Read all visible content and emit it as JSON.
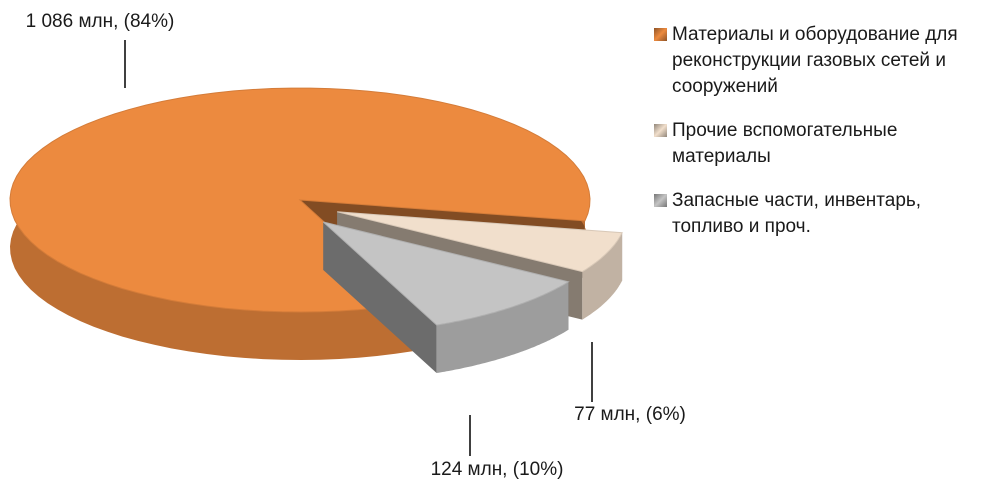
{
  "chart_data": {
    "type": "pie",
    "categories": [
      "Материалы и оборудование для реконструкции газовых сетей и сооружений",
      "Прочие вспомогательные материалы",
      "Запасные части, инвентарь, топливо и проч."
    ],
    "values": [
      1086,
      77,
      124
    ],
    "value_labels": [
      "1 086 млн,  (84%)",
      "77 млн, (6%)",
      "124 млн, (10%)"
    ],
    "colors": [
      "#ec8a3f",
      "#f1dfcc",
      "#c4c4c4"
    ],
    "legend": "right"
  }
}
